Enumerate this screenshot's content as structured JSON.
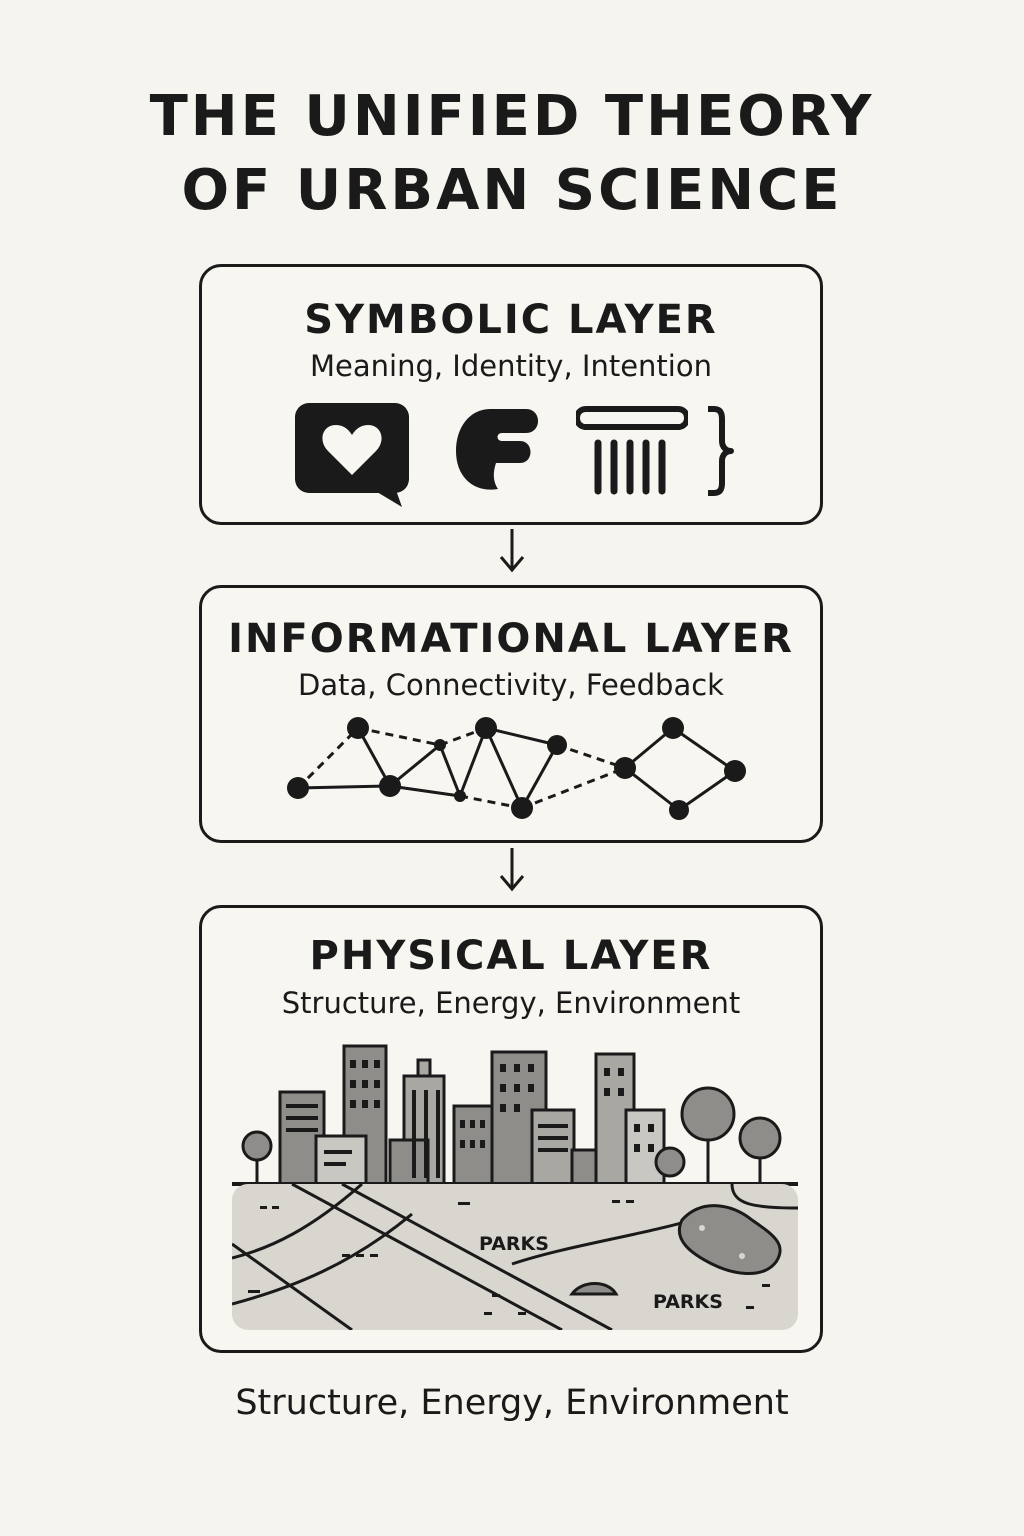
{
  "title": {
    "line1": "THE UNIFIED THEORY",
    "line2": "OF URBAN SCIENCE"
  },
  "layers": [
    {
      "title": "SYMBOLIC LAYER",
      "subtitle": "Meaning, Identity, Intention",
      "icons": [
        "heart-speech-bubble-icon",
        "speech-glyph-icon",
        "classical-column-icon",
        "curly-brace-icon"
      ]
    },
    {
      "title": "INFORMATIONAL LAYER",
      "subtitle": "Data, Connectivity, Feedback",
      "icons": [
        "network-graph-icon"
      ]
    },
    {
      "title": "PHYSICAL LAYER",
      "subtitle": "Structure, Energy, Environment",
      "icons": [
        "city-skyline-icon",
        "street-map-icon",
        "tree-icon"
      ],
      "map_labels": [
        "PARKS",
        "PARKS"
      ]
    }
  ],
  "footer": "Structure, Energy, Environment",
  "colors": {
    "background": "#f6f4ef",
    "ink": "#1a1a1a",
    "building": "#8f8d89",
    "map": "#d9d6cf"
  }
}
